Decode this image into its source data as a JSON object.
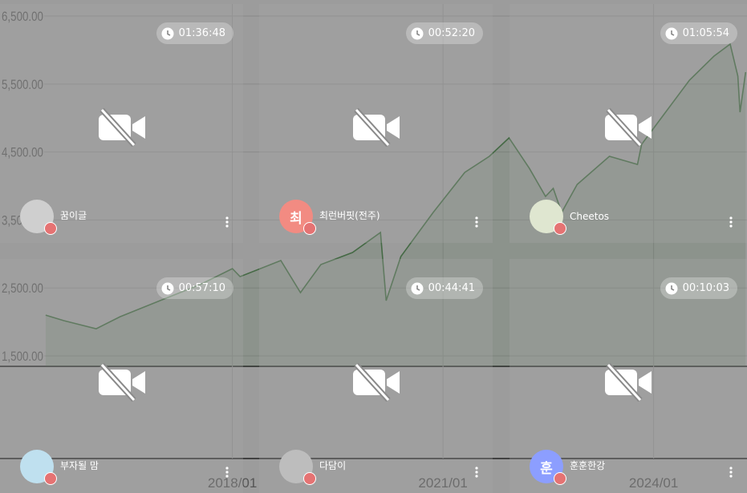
{
  "chart_data": {
    "type": "line",
    "xlim": [
      2014.69,
      2025.33
    ],
    "ylim": [
      1347,
      6677
    ],
    "yticks": [
      {
        "value": 6500,
        "label": "6,500.00"
      },
      {
        "value": 5500,
        "label": "5,500.00"
      },
      {
        "value": 4500,
        "label": "4,500.00"
      },
      {
        "value": 3500,
        "label": "3,500.00"
      },
      {
        "value": 2500,
        "label": "2,500.00"
      },
      {
        "value": 1500,
        "label": "1,500.00"
      }
    ],
    "xticks": [
      {
        "value": 2018,
        "label": "2018/01"
      },
      {
        "value": 2021,
        "label": "2021/01"
      },
      {
        "value": 2024,
        "label": "2024/01"
      }
    ],
    "grid": true,
    "series": [
      {
        "color": "#1a7a1a",
        "x": [
          2015.34,
          2015.6,
          2016.06,
          2016.4,
          2016.97,
          2017.54,
          2018,
          2018.11,
          2018.69,
          2018.97,
          2019.26,
          2019.71,
          2020.11,
          2020.19,
          2020.4,
          2020.86,
          2021.31,
          2021.66,
          2021.94,
          2022.23,
          2022.46,
          2022.57,
          2022.69,
          2022.91,
          2023.37,
          2023.77,
          2023.83,
          2024.17,
          2024.51,
          2024.86,
          2025.09,
          2025.2,
          2025.23,
          2025.31
        ],
        "values": [
          2101,
          2019,
          1900,
          2077,
          2314,
          2550,
          2785,
          2667,
          2903,
          2432,
          2844,
          3021,
          3316,
          2314,
          2962,
          3611,
          4200,
          4436,
          4708,
          4259,
          3847,
          3965,
          3611,
          4023,
          4436,
          4318,
          4613,
          5085,
          5557,
          5910,
          6087,
          5616,
          5085,
          5675
        ]
      }
    ]
  },
  "tiles": [
    {
      "timer": "01:36:48",
      "name": "꿈이글"
    },
    {
      "timer": "00:52:20",
      "name": "최런버핏(전주)",
      "initial": "최"
    },
    {
      "timer": "01:05:54",
      "name": "Cheetos"
    },
    {
      "timer": "00:57:10",
      "name": "부자될 맘"
    },
    {
      "timer": "00:44:41",
      "name": "다담이"
    },
    {
      "timer": "00:10:03",
      "name": "훈훈한강",
      "initial": "훈"
    }
  ]
}
